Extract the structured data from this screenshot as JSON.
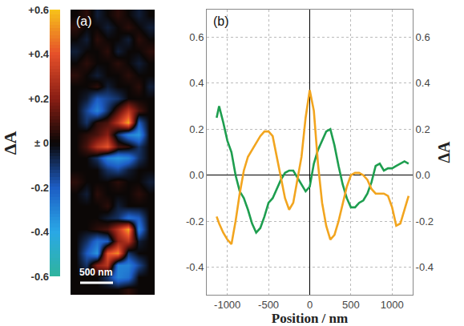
{
  "chart_data": [
    {
      "type": "heatmap",
      "panel": "(a)",
      "tick_labels": false,
      "scale_bar": "500 nm",
      "colorbar_title": "ΔA",
      "colorbar_range": [
        -0.6,
        0.6
      ],
      "colorbar_ticks": [
        {
          "value": 0.6,
          "label": "+0.6"
        },
        {
          "value": 0.4,
          "label": "+0.4"
        },
        {
          "value": 0.2,
          "label": "+0.2"
        },
        {
          "value": 0,
          "label": "± 0"
        },
        {
          "value": -0.2,
          "label": "-0.2"
        },
        {
          "value": -0.4,
          "label": "-0.4"
        },
        {
          "value": -0.6,
          "label": "-0.6"
        }
      ],
      "cells": [
        [
          0,
          0.05,
          -0.05,
          0,
          0.05,
          0,
          -0.05,
          0
        ],
        [
          0.05,
          0,
          0,
          -0.05,
          0,
          0.05,
          0,
          -0.05
        ],
        [
          0,
          -0.05,
          0.05,
          0,
          0,
          -0.05,
          0.05,
          0
        ],
        [
          -0.05,
          0,
          0,
          0.05,
          -0.05,
          0,
          0,
          0.05
        ],
        [
          0,
          0.05,
          0,
          0,
          0.05,
          0,
          -0.05,
          0
        ],
        [
          0.05,
          0,
          -0.05,
          0,
          0,
          0.05,
          0,
          0
        ],
        [
          0,
          0,
          0.05,
          -0.05,
          0,
          0,
          0.05,
          -0.05
        ],
        [
          0,
          -0.05,
          -0.2,
          -0.15,
          -0.1,
          0,
          0,
          0
        ],
        [
          0,
          -0.15,
          -0.3,
          -0.1,
          0.1,
          0.3,
          0.1,
          0
        ],
        [
          0,
          -0.1,
          0.05,
          0.1,
          0.3,
          0.55,
          -0.2,
          0
        ],
        [
          0,
          0.05,
          0.1,
          0.2,
          -0.1,
          -0.3,
          -0.35,
          0
        ],
        [
          0,
          0.1,
          0.3,
          0.4,
          0.1,
          0.05,
          -0.1,
          0
        ],
        [
          0,
          0,
          -0.1,
          -0.3,
          -0.35,
          -0.3,
          -0.1,
          0
        ],
        [
          0,
          0,
          0,
          -0.1,
          -0.15,
          -0.05,
          0,
          0
        ],
        [
          0.05,
          0,
          0,
          0,
          0.05,
          0,
          0,
          -0.05
        ],
        [
          0,
          -0.05,
          0.05,
          0,
          0,
          0,
          0.05,
          0
        ],
        [
          0,
          0,
          0,
          0.05,
          -0.05,
          0,
          0,
          0
        ],
        [
          0,
          0,
          0,
          -0.05,
          -0.1,
          -0.25,
          -0.2,
          0
        ],
        [
          0,
          0,
          0.05,
          0.1,
          0.3,
          0.55,
          -0.3,
          0
        ],
        [
          0,
          -0.1,
          -0.25,
          -0.2,
          0.2,
          0.3,
          -0.05,
          0
        ],
        [
          0,
          -0.2,
          -0.35,
          0.4,
          0.5,
          -0.1,
          0,
          0
        ],
        [
          0,
          -0.1,
          0.2,
          0.3,
          -0.3,
          -0.3,
          -0.15,
          0
        ],
        [
          0,
          0,
          0,
          -0.1,
          -0.3,
          -0.25,
          0,
          0
        ],
        [
          0,
          0,
          0,
          0,
          0,
          0.05,
          0,
          0
        ]
      ]
    },
    {
      "type": "line",
      "panel": "(b)",
      "grid": true,
      "x_label": "Position / nm",
      "y_label": "ΔA",
      "xlim": [
        -1250,
        1250
      ],
      "xticks": [
        -1000,
        -500,
        0,
        500,
        1000
      ],
      "ylim": [
        -0.52,
        0.72
      ],
      "yticks": [
        -0.4,
        -0.2,
        {
          "value": 0,
          "label": "0.0"
        },
        0.2,
        0.4,
        0.6
      ],
      "x": [
        -1130,
        -1100,
        -1050,
        -1000,
        -950,
        -900,
        -850,
        -800,
        -750,
        -700,
        -650,
        -600,
        -550,
        -500,
        -450,
        -400,
        -350,
        -300,
        -250,
        -200,
        -150,
        -100,
        -50,
        0,
        50,
        100,
        150,
        200,
        250,
        300,
        350,
        400,
        450,
        500,
        550,
        600,
        650,
        700,
        750,
        800,
        850,
        900,
        950,
        1000,
        1050,
        1100,
        1150,
        1200
      ],
      "series": [
        {
          "color": "#f2a51f",
          "values": [
            -0.18,
            -0.21,
            -0.25,
            -0.28,
            -0.3,
            -0.2,
            -0.08,
            0.02,
            0.08,
            0.11,
            0.14,
            0.17,
            0.19,
            0.19,
            0.17,
            0.08,
            -0.02,
            -0.1,
            -0.15,
            -0.12,
            -0.02,
            0.08,
            0.25,
            0.37,
            0.28,
            0.05,
            -0.12,
            -0.22,
            -0.28,
            -0.26,
            -0.2,
            -0.12,
            -0.05,
            0,
            0.01,
            0.01,
            0,
            -0.02,
            -0.06,
            -0.08,
            -0.08,
            -0.08,
            -0.09,
            -0.14,
            -0.22,
            -0.21,
            -0.15,
            -0.09
          ]
        },
        {
          "color": "#1e9e4f",
          "values": [
            0.25,
            0.3,
            0.23,
            0.15,
            0.1,
            0,
            -0.07,
            -0.1,
            -0.15,
            -0.21,
            -0.25,
            -0.23,
            -0.18,
            -0.12,
            -0.1,
            -0.06,
            -0.02,
            0.01,
            0.02,
            0.02,
            -0.01,
            -0.04,
            -0.07,
            -0.05,
            0.05,
            0.11,
            0.15,
            0.19,
            0.2,
            0.13,
            0.04,
            -0.04,
            -0.1,
            -0.14,
            -0.14,
            -0.12,
            -0.11,
            -0.08,
            -0.03,
            0.04,
            0.05,
            0.02,
            0.03,
            0.03,
            0.04,
            0.05,
            0.06,
            0.05
          ]
        }
      ]
    }
  ]
}
